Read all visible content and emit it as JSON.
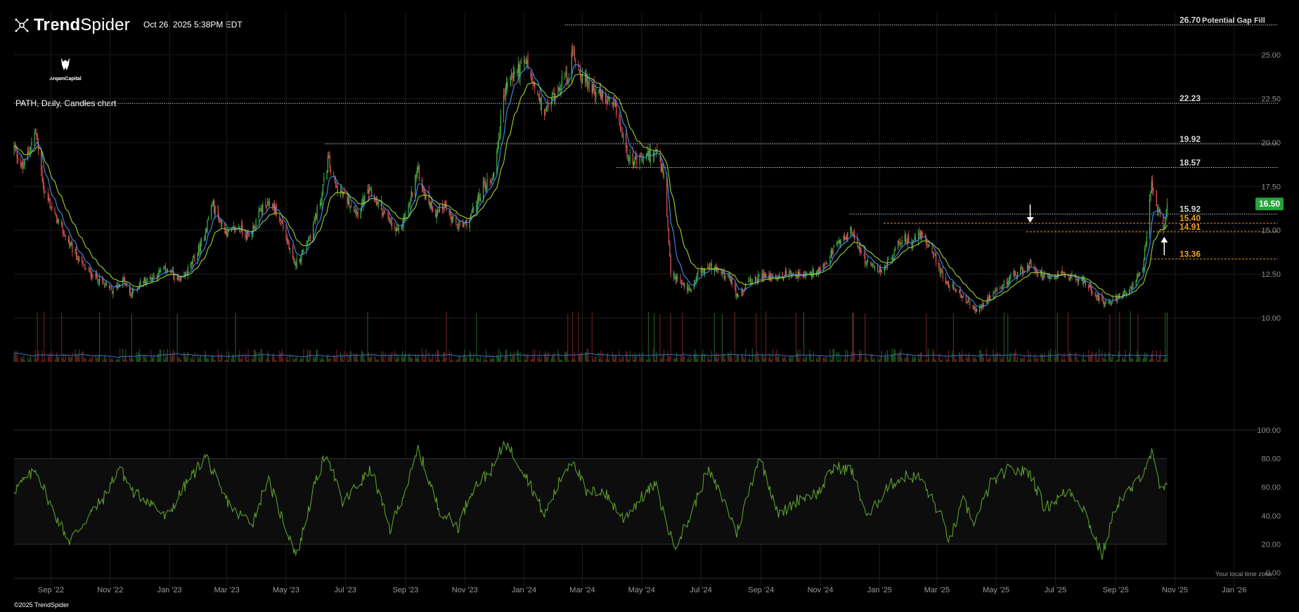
{
  "header": {
    "brand": "TrendSpider",
    "brand_bold": "Trend",
    "brand_light": "Spider",
    "timestamp": "Oct 26, 2025 5:38PM EDT",
    "logo_text": "ArqamCapital",
    "chart_title": "PATH, Daily, Candles chart"
  },
  "footer": {
    "copyright": "©2025 TrendSpider",
    "timezone_note": "Your local time zone"
  },
  "colors": {
    "background": "#000000",
    "candle_up": "#43c04a",
    "candle_down": "#e8575b",
    "ma_fast": "#3f8ff0",
    "ma_slow": "#9ad42a",
    "rsi_line": "#5a9e2a",
    "level_white": "#d8d8d8",
    "level_orange": "#f0a020",
    "last_price_badge": "#26a33a"
  },
  "chart_data": {
    "type": "candlestick",
    "symbol": "PATH",
    "title": "PATH, Daily, Candles chart",
    "interval": "Daily",
    "x_axis": {
      "labels": [
        "Sep '22",
        "Nov '22",
        "Jan '23",
        "Mar '23",
        "May '23",
        "Jul '23",
        "Sep '23",
        "Nov '23",
        "Jan '24",
        "Mar '24",
        "May '24",
        "Jul '24",
        "Sep '24",
        "Nov '24",
        "Jan '25",
        "Mar '25",
        "May '25",
        "Jul '25",
        "Sep '25",
        "Nov '25",
        "Jan '26"
      ],
      "range": [
        "2022-07-25",
        "2026-02-15"
      ]
    },
    "price_axis": {
      "ticks": [
        "25.00",
        "22.50",
        "20.00",
        "17.50",
        "15.00",
        "12.50",
        "10.00"
      ],
      "range": [
        7.5,
        27.4
      ]
    },
    "last_price": "16.50",
    "levels": [
      {
        "price": 26.7,
        "label": "26.70",
        "note": "Potential Gap Fill",
        "style": "white",
        "start": "2024-02-12"
      },
      {
        "price": 22.23,
        "label": "22.23",
        "note": "",
        "style": "white",
        "start": "2022-07-25"
      },
      {
        "price": 19.92,
        "label": "19.92",
        "note": "",
        "style": "white",
        "start": "2023-06-10"
      },
      {
        "price": 18.57,
        "label": "18.57",
        "note": "",
        "style": "white",
        "start": "2024-04-05"
      },
      {
        "price": 15.92,
        "label": "15.92",
        "note": "",
        "style": "white",
        "start": "2024-12-01"
      },
      {
        "price": 15.4,
        "label": "15.40",
        "note": "",
        "style": "orange",
        "start": "2025-01-05"
      },
      {
        "price": 14.91,
        "label": "14.91",
        "note": "",
        "style": "orange",
        "start": "2025-06-01"
      },
      {
        "price": 13.36,
        "label": "13.36",
        "note": "",
        "style": "orange",
        "start": "2025-10-07"
      }
    ],
    "markers": [
      {
        "type": "arrow-down",
        "date": "2025-06-05",
        "price": 15.35
      },
      {
        "type": "arrow-up",
        "date": "2025-10-21",
        "price": 14.7
      }
    ],
    "price_anchors": [
      [
        "2022-07-25",
        19.7
      ],
      [
        "2022-08-03",
        18.5
      ],
      [
        "2022-08-16",
        20.7
      ],
      [
        "2022-08-25",
        17.2
      ],
      [
        "2022-09-08",
        15.5
      ],
      [
        "2022-09-22",
        14.0
      ],
      [
        "2022-10-06",
        12.8
      ],
      [
        "2022-10-20",
        12.2
      ],
      [
        "2022-11-03",
        11.5
      ],
      [
        "2022-11-14",
        12.2
      ],
      [
        "2022-11-22",
        11.3
      ],
      [
        "2022-12-02",
        12.0
      ],
      [
        "2022-12-16",
        12.4
      ],
      [
        "2022-12-30",
        12.8
      ],
      [
        "2023-01-12",
        12.0
      ],
      [
        "2023-01-24",
        13.1
      ],
      [
        "2023-02-03",
        14.2
      ],
      [
        "2023-02-14",
        16.5
      ],
      [
        "2023-02-22",
        15.5
      ],
      [
        "2023-03-02",
        14.8
      ],
      [
        "2023-03-13",
        15.2
      ],
      [
        "2023-03-24",
        14.6
      ],
      [
        "2023-04-05",
        16.2
      ],
      [
        "2023-04-17",
        16.5
      ],
      [
        "2023-04-28",
        15.2
      ],
      [
        "2023-05-09",
        13.0
      ],
      [
        "2023-05-16",
        13.5
      ],
      [
        "2023-05-26",
        14.8
      ],
      [
        "2023-06-06",
        16.8
      ],
      [
        "2023-06-13",
        19.0
      ],
      [
        "2023-06-22",
        17.4
      ],
      [
        "2023-07-05",
        16.6
      ],
      [
        "2023-07-14",
        16.0
      ],
      [
        "2023-07-25",
        17.2
      ],
      [
        "2023-08-07",
        16.2
      ],
      [
        "2023-08-15",
        15.5
      ],
      [
        "2023-08-24",
        14.8
      ],
      [
        "2023-09-05",
        16.5
      ],
      [
        "2023-09-13",
        18.5
      ],
      [
        "2023-09-21",
        17.0
      ],
      [
        "2023-10-02",
        16.0
      ],
      [
        "2023-10-11",
        16.5
      ],
      [
        "2023-10-20",
        15.4
      ],
      [
        "2023-10-31",
        15.2
      ],
      [
        "2023-11-09",
        16.0
      ],
      [
        "2023-11-20",
        17.5
      ],
      [
        "2023-11-30",
        18.0
      ],
      [
        "2023-12-06",
        20.4
      ],
      [
        "2023-12-12",
        23.0
      ],
      [
        "2023-12-22",
        24.0
      ],
      [
        "2024-01-04",
        24.5
      ],
      [
        "2024-01-12",
        23.0
      ],
      [
        "2024-01-22",
        21.6
      ],
      [
        "2024-02-01",
        22.8
      ],
      [
        "2024-02-08",
        23.5
      ],
      [
        "2024-02-15",
        23.8
      ],
      [
        "2024-02-21",
        25.2
      ],
      [
        "2024-03-01",
        23.6
      ],
      [
        "2024-03-12",
        23.2
      ],
      [
        "2024-03-22",
        22.5
      ],
      [
        "2024-04-05",
        21.8
      ],
      [
        "2024-04-15",
        19.5
      ],
      [
        "2024-04-25",
        18.8
      ],
      [
        "2024-05-06",
        19.2
      ],
      [
        "2024-05-16",
        19.5
      ],
      [
        "2024-05-24",
        18.0
      ],
      [
        "2024-05-31",
        12.5
      ],
      [
        "2024-06-10",
        12.0
      ],
      [
        "2024-06-20",
        11.6
      ],
      [
        "2024-06-28",
        12.6
      ],
      [
        "2024-07-10",
        12.9
      ],
      [
        "2024-07-22",
        12.6
      ],
      [
        "2024-08-02",
        12.0
      ],
      [
        "2024-08-07",
        11.3
      ],
      [
        "2024-08-20",
        12.0
      ],
      [
        "2024-09-03",
        12.4
      ],
      [
        "2024-09-16",
        12.3
      ],
      [
        "2024-10-01",
        12.6
      ],
      [
        "2024-10-15",
        12.4
      ],
      [
        "2024-10-28",
        12.6
      ],
      [
        "2024-11-06",
        12.9
      ],
      [
        "2024-11-14",
        13.9
      ],
      [
        "2024-11-22",
        14.3
      ],
      [
        "2024-12-03",
        15.0
      ],
      [
        "2024-12-10",
        14.2
      ],
      [
        "2024-12-18",
        13.1
      ],
      [
        "2025-01-02",
        12.7
      ],
      [
        "2025-01-13",
        13.4
      ],
      [
        "2025-01-24",
        14.6
      ],
      [
        "2025-02-03",
        14.3
      ],
      [
        "2025-02-14",
        14.8
      ],
      [
        "2025-02-24",
        13.8
      ],
      [
        "2025-03-06",
        12.5
      ],
      [
        "2025-03-14",
        11.8
      ],
      [
        "2025-03-24",
        11.4
      ],
      [
        "2025-04-04",
        10.8
      ],
      [
        "2025-04-09",
        10.3
      ],
      [
        "2025-04-17",
        10.8
      ],
      [
        "2025-04-28",
        11.3
      ],
      [
        "2025-05-09",
        11.9
      ],
      [
        "2025-05-19",
        12.5
      ],
      [
        "2025-05-28",
        12.7
      ],
      [
        "2025-06-05",
        13.1
      ],
      [
        "2025-06-16",
        12.5
      ],
      [
        "2025-06-25",
        12.4
      ],
      [
        "2025-07-07",
        12.6
      ],
      [
        "2025-07-18",
        12.3
      ],
      [
        "2025-07-30",
        12.1
      ],
      [
        "2025-08-08",
        11.5
      ],
      [
        "2025-08-20",
        10.9
      ],
      [
        "2025-08-29",
        11.0
      ],
      [
        "2025-09-08",
        11.3
      ],
      [
        "2025-09-18",
        11.9
      ],
      [
        "2025-09-29",
        12.7
      ],
      [
        "2025-10-03",
        14.8
      ],
      [
        "2025-10-08",
        17.7
      ],
      [
        "2025-10-13",
        16.2
      ],
      [
        "2025-10-17",
        15.8
      ],
      [
        "2025-10-21",
        15.1
      ],
      [
        "2025-10-24",
        16.5
      ]
    ],
    "rsi": {
      "ticks": [
        "100.00",
        "80.00",
        "60.00",
        "40.00",
        "20.00",
        "0.00"
      ],
      "range": [
        0,
        100
      ],
      "band": [
        20,
        80
      ],
      "anchors": [
        [
          "2022-07-25",
          58
        ],
        [
          "2022-08-17",
          72
        ],
        [
          "2022-09-02",
          45
        ],
        [
          "2022-09-20",
          22
        ],
        [
          "2022-10-10",
          40
        ],
        [
          "2022-10-25",
          52
        ],
        [
          "2022-11-10",
          74
        ],
        [
          "2022-11-25",
          56
        ],
        [
          "2022-12-12",
          50
        ],
        [
          "2022-12-28",
          38
        ],
        [
          "2023-01-18",
          62
        ],
        [
          "2023-02-08",
          82
        ],
        [
          "2023-02-22",
          58
        ],
        [
          "2023-03-10",
          42
        ],
        [
          "2023-03-28",
          36
        ],
        [
          "2023-04-12",
          66
        ],
        [
          "2023-04-26",
          40
        ],
        [
          "2023-05-12",
          12
        ],
        [
          "2023-05-30",
          60
        ],
        [
          "2023-06-12",
          85
        ],
        [
          "2023-06-28",
          48
        ],
        [
          "2023-07-12",
          60
        ],
        [
          "2023-07-28",
          72
        ],
        [
          "2023-08-16",
          30
        ],
        [
          "2023-09-08",
          72
        ],
        [
          "2023-09-14",
          87
        ],
        [
          "2023-10-05",
          45
        ],
        [
          "2023-10-25",
          32
        ],
        [
          "2023-11-08",
          58
        ],
        [
          "2023-12-01",
          74
        ],
        [
          "2023-12-12",
          92
        ],
        [
          "2024-01-02",
          70
        ],
        [
          "2024-01-22",
          40
        ],
        [
          "2024-02-12",
          72
        ],
        [
          "2024-02-21",
          80
        ],
        [
          "2024-03-05",
          55
        ],
        [
          "2024-03-22",
          58
        ],
        [
          "2024-04-12",
          38
        ],
        [
          "2024-04-30",
          52
        ],
        [
          "2024-05-15",
          62
        ],
        [
          "2024-06-03",
          18
        ],
        [
          "2024-06-18",
          36
        ],
        [
          "2024-07-08",
          72
        ],
        [
          "2024-07-25",
          50
        ],
        [
          "2024-08-07",
          28
        ],
        [
          "2024-08-30",
          82
        ],
        [
          "2024-09-20",
          40
        ],
        [
          "2024-10-10",
          52
        ],
        [
          "2024-10-30",
          56
        ],
        [
          "2024-11-15",
          74
        ],
        [
          "2024-12-03",
          72
        ],
        [
          "2024-12-20",
          38
        ],
        [
          "2025-01-08",
          60
        ],
        [
          "2025-01-28",
          68
        ],
        [
          "2025-02-12",
          66
        ],
        [
          "2025-03-05",
          40
        ],
        [
          "2025-03-14",
          22
        ],
        [
          "2025-03-28",
          50
        ],
        [
          "2025-04-09",
          35
        ],
        [
          "2025-04-25",
          62
        ],
        [
          "2025-05-12",
          72
        ],
        [
          "2025-06-05",
          70
        ],
        [
          "2025-06-20",
          45
        ],
        [
          "2025-07-15",
          58
        ],
        [
          "2025-07-28",
          48
        ],
        [
          "2025-08-18",
          12
        ],
        [
          "2025-09-02",
          48
        ],
        [
          "2025-09-22",
          62
        ],
        [
          "2025-10-08",
          84
        ],
        [
          "2025-10-17",
          58
        ],
        [
          "2025-10-24",
          59
        ]
      ]
    }
  }
}
